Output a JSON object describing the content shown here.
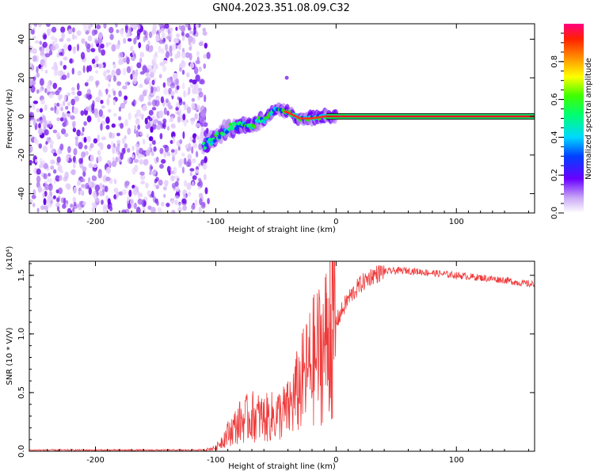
{
  "title": "GN04.2023.351.08.09.C32",
  "chart_data": [
    {
      "type": "heatmap",
      "xlabel": "Height of straight line (km)",
      "ylabel": "Frequency (Hz)",
      "xlim": [
        -255,
        165
      ],
      "ylim": [
        -50,
        48
      ],
      "xticks": [
        -200,
        -100,
        0,
        100
      ],
      "yticks": [
        -40,
        -20,
        0,
        20,
        40
      ],
      "colorbar": {
        "label": "Normalized spectral amplitude",
        "range": [
          0,
          1
        ],
        "ticks": [
          "0.0",
          "0.2",
          "0.4",
          "0.6",
          "0.8"
        ]
      },
      "noise_region_x": [
        -255,
        -110
      ],
      "signal_track": [
        {
          "x": -110,
          "y": -15
        },
        {
          "x": -100,
          "y": -11
        },
        {
          "x": -90,
          "y": -6
        },
        {
          "x": -80,
          "y": -5
        },
        {
          "x": -70,
          "y": -4
        },
        {
          "x": -60,
          "y": -2
        },
        {
          "x": -50,
          "y": 4
        },
        {
          "x": -40,
          "y": 2
        },
        {
          "x": -30,
          "y": -1
        },
        {
          "x": -20,
          "y": -1
        },
        {
          "x": -10,
          "y": 0
        },
        {
          "x": 0,
          "y": 0
        },
        {
          "x": 50,
          "y": 0
        },
        {
          "x": 100,
          "y": 0
        },
        {
          "x": 165,
          "y": 0
        }
      ],
      "stray_point": {
        "x": -41,
        "y": 20
      }
    },
    {
      "type": "line",
      "xlabel": "Height of straight line (km)",
      "ylabel": "SNR (10 * V/V)",
      "y_multiplier": "(x10⁴)",
      "xlim": [
        -255,
        165
      ],
      "ylim": [
        0,
        1.62
      ],
      "xticks": [
        -200,
        -100,
        0,
        100
      ],
      "yticks": [
        "0.0",
        "0.5",
        "1.0",
        "1.5"
      ],
      "series": [
        {
          "color": "#ef3a3a",
          "x": [
            -255,
            -200,
            -150,
            -110,
            -100,
            -90,
            -80,
            -70,
            -60,
            -50,
            -40,
            -30,
            -20,
            -10,
            -5,
            0,
            10,
            20,
            30,
            40,
            50,
            60,
            70,
            80,
            90,
            100,
            110,
            120,
            130,
            140,
            150,
            165
          ],
          "y": [
            0.01,
            0.01,
            0.01,
            0.01,
            0.03,
            0.15,
            0.25,
            0.3,
            0.28,
            0.3,
            0.35,
            0.55,
            0.75,
            0.9,
            1.0,
            1.1,
            1.3,
            1.42,
            1.5,
            1.53,
            1.54,
            1.54,
            1.53,
            1.52,
            1.51,
            1.5,
            1.49,
            1.48,
            1.47,
            1.46,
            1.44,
            1.42
          ]
        }
      ],
      "spikes": [
        {
          "x": -5,
          "y": 1.62
        },
        {
          "x": -3,
          "y": 0.28
        },
        {
          "x": -8,
          "y": 1.35
        }
      ]
    }
  ]
}
